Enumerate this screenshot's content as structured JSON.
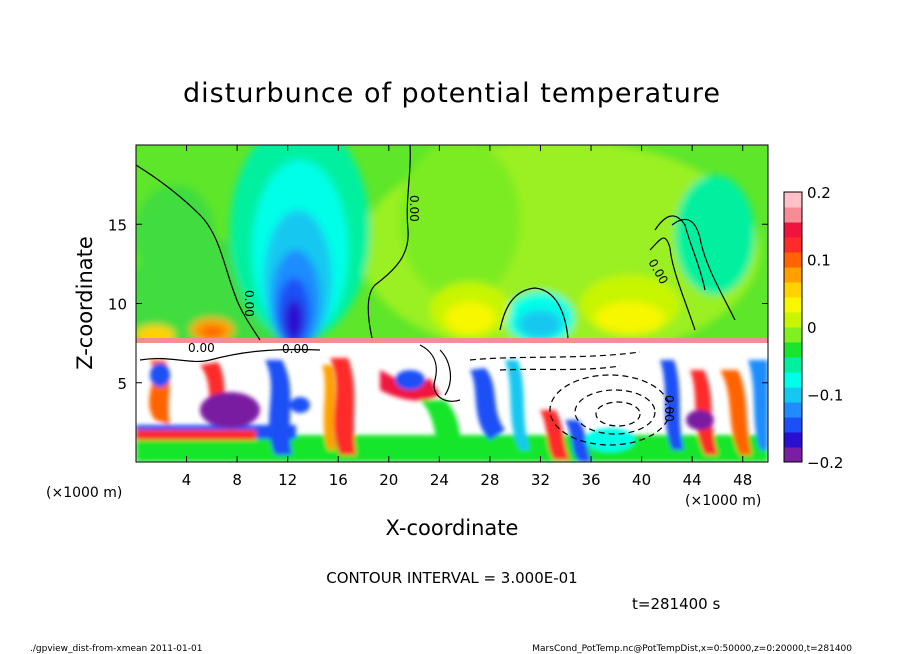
{
  "chart_data": {
    "type": "heatmap",
    "title": "disturbunce of potential temperature",
    "xlabel": "X-coordinate",
    "ylabel": "Z-coordinate",
    "x_unit_left": "(×1000 m)",
    "x_unit_right": "(×1000 m)",
    "xlim": [
      0,
      50
    ],
    "ylim": [
      0,
      20
    ],
    "x_ticks": [
      4,
      8,
      12,
      16,
      20,
      24,
      28,
      32,
      36,
      40,
      44,
      48
    ],
    "y_ticks": [
      5,
      10,
      15
    ],
    "colorbar": {
      "range": [
        -0.2,
        0.2
      ],
      "tick_values": [
        0.2,
        0.1,
        0,
        -0.1,
        -0.2
      ],
      "tick_labels": [
        "0.2",
        "0.1",
        "0",
        "−0.1",
        "−0.2"
      ],
      "colors": [
        "#7a1fa2",
        "#2a0fd0",
        "#1c4ff5",
        "#1f8cff",
        "#14c8f0",
        "#00ffe8",
        "#00f0a0",
        "#18e62c",
        "#80f020",
        "#c8f500",
        "#f7f700",
        "#ffd200",
        "#ffa000",
        "#ff6400",
        "#ff2a2a",
        "#f0143c",
        "#f58c96",
        "#ffc0c8"
      ]
    },
    "contour_labels": [
      "0.00",
      "0.00",
      "0.00",
      "0.00",
      "0.00",
      "0.00"
    ]
  },
  "contour_interval": "CONTOUR INTERVAL = 3.000E-01",
  "time_label": "t=281400 s",
  "footer_left": "./gpview_dist-from-xmean  2011-01-01",
  "footer_right": "MarsCond_PotTemp.nc@PotTempDist,x=0:50000,z=0:20000,t=281400"
}
